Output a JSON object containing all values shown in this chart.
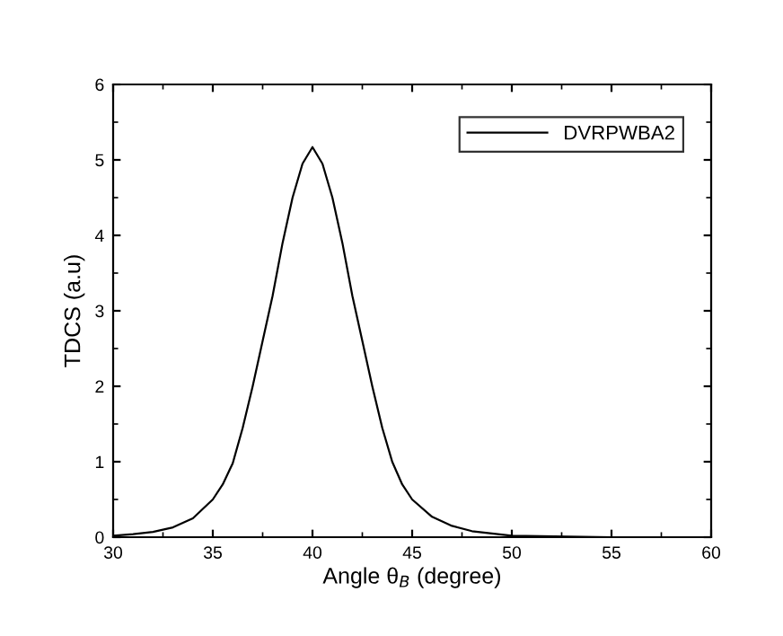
{
  "chart_data": {
    "type": "line",
    "xlabel": "Angle θ$_{B}$ (degree)",
    "ylabel": "TDCS (a.u)",
    "xlim": [
      30,
      60
    ],
    "ylim": [
      0,
      6
    ],
    "xticks": [
      30,
      35,
      40,
      45,
      50,
      55,
      60
    ],
    "yticks": [
      0,
      1,
      2,
      3,
      4,
      5,
      6
    ],
    "grid": false,
    "legend": "top right",
    "marker": "none",
    "line_style": "solid",
    "series": [
      {
        "name": "DVRPWBA2",
        "color": "#000000",
        "x": [
          30,
          31,
          32,
          33,
          34,
          35,
          35.5,
          36,
          36.5,
          37,
          37.5,
          38,
          38.5,
          39,
          39.5,
          40,
          40.5,
          41,
          41.5,
          42,
          42.5,
          43,
          43.5,
          44,
          44.5,
          45,
          46,
          47,
          48,
          50,
          55,
          60
        ],
        "values": [
          0.02,
          0.04,
          0.07,
          0.13,
          0.25,
          0.5,
          0.7,
          0.98,
          1.45,
          2.0,
          2.6,
          3.2,
          3.9,
          4.5,
          4.95,
          5.17,
          4.95,
          4.5,
          3.9,
          3.2,
          2.6,
          2.0,
          1.45,
          1.0,
          0.7,
          0.5,
          0.27,
          0.15,
          0.08,
          0.02,
          0,
          0
        ]
      }
    ]
  }
}
